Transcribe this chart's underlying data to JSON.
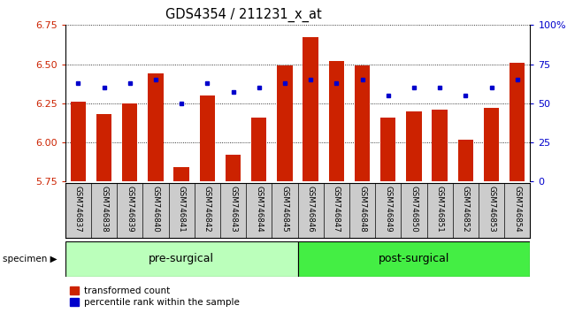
{
  "title": "GDS4354 / 211231_x_at",
  "samples": [
    "GSM746837",
    "GSM746838",
    "GSM746839",
    "GSM746840",
    "GSM746841",
    "GSM746842",
    "GSM746843",
    "GSM746844",
    "GSM746845",
    "GSM746846",
    "GSM746847",
    "GSM746848",
    "GSM746849",
    "GSM746850",
    "GSM746851",
    "GSM746852",
    "GSM746853",
    "GSM746854"
  ],
  "bar_values": [
    6.26,
    6.18,
    6.25,
    6.44,
    5.84,
    6.3,
    5.92,
    6.16,
    6.49,
    6.67,
    6.52,
    6.49,
    6.16,
    6.2,
    6.21,
    6.02,
    6.22,
    6.51
  ],
  "percentile_values": [
    63,
    60,
    63,
    65,
    50,
    63,
    57,
    60,
    63,
    65,
    63,
    65,
    55,
    60,
    60,
    55,
    60,
    65
  ],
  "y_min": 5.75,
  "y_max": 6.75,
  "y_ticks": [
    5.75,
    6.0,
    6.25,
    6.5,
    6.75
  ],
  "y_right_ticks": [
    0,
    25,
    50,
    75,
    100
  ],
  "bar_color": "#cc2200",
  "dot_color": "#0000cc",
  "groups": [
    {
      "label": "pre-surgical",
      "count": 9,
      "color": "#bbffbb"
    },
    {
      "label": "post-surgical",
      "count": 9,
      "color": "#44ee44"
    }
  ],
  "label_bg_color": "#cccccc",
  "ylabel_left_color": "#cc2200",
  "ylabel_right_color": "#0000cc",
  "legend_items": [
    {
      "label": "transformed count",
      "color": "#cc2200"
    },
    {
      "label": "percentile rank within the sample",
      "color": "#0000cc"
    }
  ]
}
